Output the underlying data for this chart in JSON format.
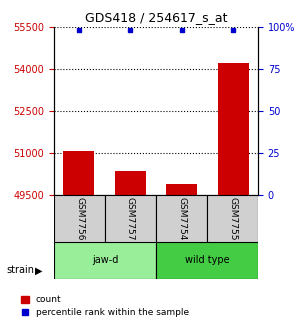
{
  "title": "GDS418 / 254617_s_at",
  "samples": [
    "GSM7756",
    "GSM7757",
    "GSM7754",
    "GSM7755"
  ],
  "count_values": [
    51050,
    50350,
    49900,
    54200
  ],
  "percentile_values": [
    100,
    100,
    100,
    100
  ],
  "ylim_left": [
    49500,
    55500
  ],
  "ylim_right": [
    0,
    100
  ],
  "yticks_left": [
    49500,
    51000,
    52500,
    54000,
    55500
  ],
  "yticks_right": [
    0,
    25,
    50,
    75,
    100
  ],
  "bar_color": "#cc0000",
  "percentile_color": "#0000cc",
  "group_colors_jawD": "#99ee99",
  "group_colors_wildtype": "#44cc44",
  "sample_box_color": "#d0d0d0",
  "left_tick_color": "#cc0000",
  "right_tick_color": "#0000cc",
  "bar_width": 0.6
}
